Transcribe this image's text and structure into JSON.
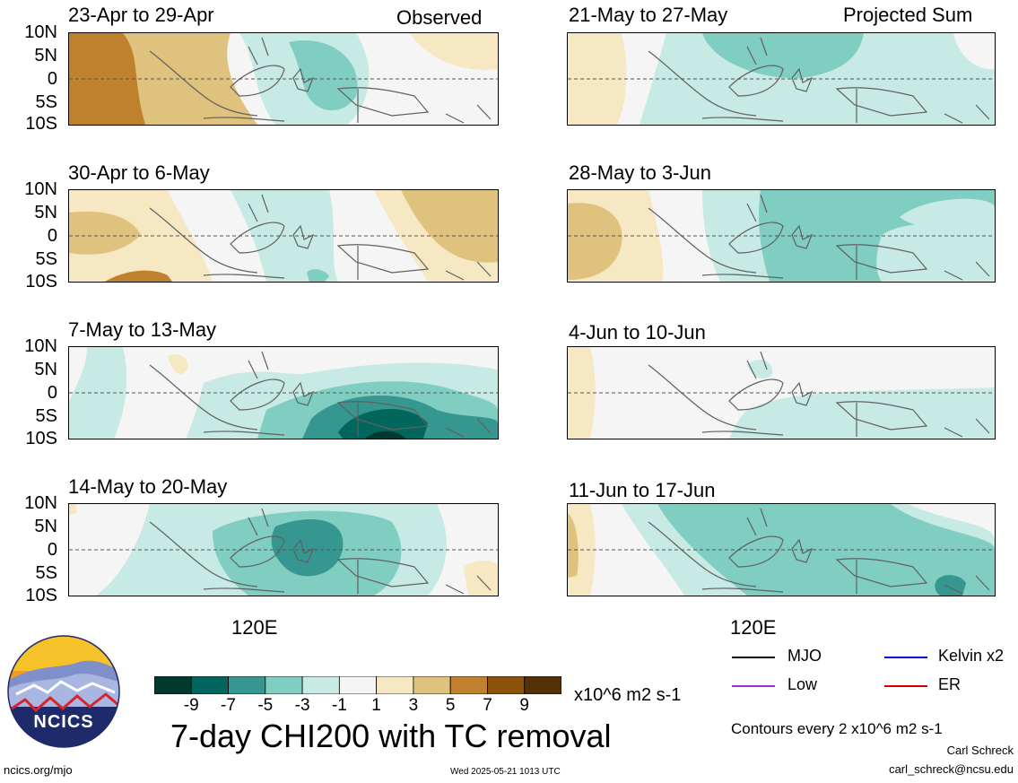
{
  "headers": {
    "observed": "Observed",
    "projected": "Projected Sum"
  },
  "lat_labels": [
    "10N",
    "5N",
    "0",
    "5S",
    "10S"
  ],
  "lon_label": "120E",
  "panels": [
    {
      "title": "23-Apr to 29-Apr",
      "column": "observed"
    },
    {
      "title": "30-Apr to 6-May",
      "column": "observed"
    },
    {
      "title": "7-May to 13-May",
      "column": "observed"
    },
    {
      "title": "14-May to 20-May",
      "column": "observed"
    },
    {
      "title": "21-May to 27-May",
      "column": "projected"
    },
    {
      "title": "28-May to 3-Jun",
      "column": "projected"
    },
    {
      "title": "4-Jun to 10-Jun",
      "column": "projected"
    },
    {
      "title": "11-Jun to 17-Jun",
      "column": "projected"
    }
  ],
  "colorbar": {
    "labels": [
      "-9",
      "-7",
      "-5",
      "-3",
      "-1",
      "1",
      "3",
      "5",
      "7",
      "9"
    ],
    "colors": [
      "#01392f",
      "#01665e",
      "#35978f",
      "#80cdc1",
      "#c7eae5",
      "#f5f5f5",
      "#f6e8c3",
      "#dfc27d",
      "#bf812d",
      "#8c510a",
      "#543005"
    ],
    "units": "x10^6 m2 s-1"
  },
  "title": "7-day CHI200 with TC removal",
  "legend": [
    {
      "label": "MJO",
      "color": "#000000"
    },
    {
      "label": "Kelvin x2",
      "color": "#0000cc"
    },
    {
      "label": "Low",
      "color": "#9933cc"
    },
    {
      "label": "ER",
      "color": "#cc0000"
    }
  ],
  "contour_note": "Contours every 2 x10^6 m2 s-1",
  "author": "Carl Schreck",
  "email": "carl_schreck@ncsu.edu",
  "site": "ncics.org/mjo",
  "timestamp": "Wed 2025-05-21 1013 UTC",
  "logo_text": "NCICS"
}
